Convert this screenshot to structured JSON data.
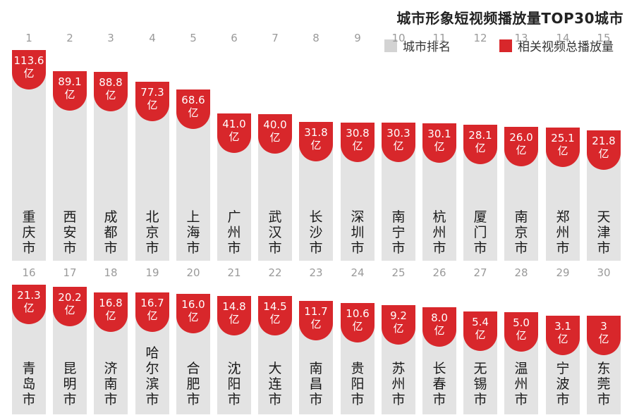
{
  "title": "城市形象短视频播放量TOP30城市",
  "legend": [
    {
      "label": "城市排名",
      "color": "#d3d3d3"
    },
    {
      "label": "相关视频总播放量",
      "color": "#d8272b"
    }
  ],
  "chart_data": {
    "type": "bar",
    "title": "城市形象短视频播放量TOP30城市",
    "unit": "亿",
    "series": [
      {
        "name": "相关视频总播放量",
        "values": [
          113.6,
          89.1,
          88.8,
          77.3,
          68.6,
          41.0,
          40.0,
          31.8,
          30.8,
          30.3,
          30.1,
          28.1,
          26.0,
          25.1,
          21.8,
          21.3,
          20.2,
          16.8,
          16.7,
          16.0,
          14.8,
          14.5,
          11.7,
          10.6,
          9.2,
          8.0,
          5.4,
          5.0,
          3.1,
          3
        ]
      }
    ],
    "ranks": [
      1,
      2,
      3,
      4,
      5,
      6,
      7,
      8,
      9,
      10,
      11,
      12,
      13,
      14,
      15,
      16,
      17,
      18,
      19,
      20,
      21,
      22,
      23,
      24,
      25,
      26,
      27,
      28,
      29,
      30
    ],
    "value_labels": [
      "113.6",
      "89.1",
      "88.8",
      "77.3",
      "68.6",
      "41.0",
      "40.0",
      "31.8",
      "30.8",
      "30.3",
      "30.1",
      "28.1",
      "26.0",
      "25.1",
      "21.8",
      "21.3",
      "20.2",
      "16.8",
      "16.7",
      "16.0",
      "14.8",
      "14.5",
      "11.7",
      "10.6",
      "9.2",
      "8.0",
      "5.4",
      "5.0",
      "3.1",
      "3"
    ],
    "categories": [
      "重庆市",
      "西安市",
      "成都市",
      "北京市",
      "上海市",
      "广州市",
      "武汉市",
      "长沙市",
      "深圳市",
      "南宁市",
      "杭州市",
      "厦门市",
      "南京市",
      "郑州市",
      "天津市",
      "青岛市",
      "昆明市",
      "济南市",
      "哈尔滨市",
      "合肥市",
      "沈阳市",
      "大连市",
      "南昌市",
      "贵阳市",
      "苏州市",
      "长春市",
      "无锡市",
      "温州市",
      "宁波市",
      "东莞市"
    ]
  }
}
